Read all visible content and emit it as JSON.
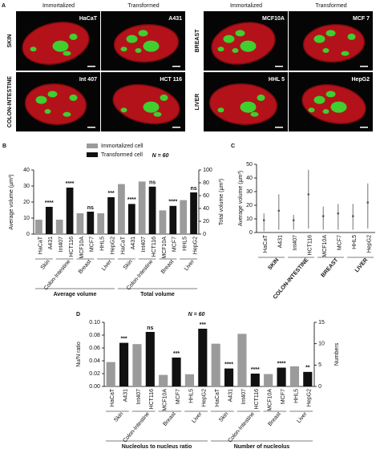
{
  "panel_a": {
    "label": "A",
    "grids": [
      {
        "headers": [
          "Immortalized",
          "Transformed"
        ],
        "rows": [
          {
            "tissue": "SKIN",
            "cells": [
              "HaCaT",
              "A431"
            ]
          },
          {
            "tissue": "COLON-INTESTINE",
            "cells": [
              "Int 407",
              "HCT 116"
            ]
          }
        ]
      },
      {
        "headers": [
          "Immortalized",
          "Transformed"
        ],
        "rows": [
          {
            "tissue": "BREAST",
            "cells": [
              "MCF10A",
              "MCF 7"
            ]
          },
          {
            "tissue": "LIVER",
            "cells": [
              "HHL 5",
              "HepG2"
            ]
          }
        ]
      }
    ]
  },
  "chart_data": [
    {
      "type": "bar",
      "label": "B",
      "note": "N = 60",
      "ylabel": "Average volume (µm³)",
      "y2label": "Total volume (µm³)",
      "ylim": [
        0,
        40
      ],
      "yticks": [
        0,
        10,
        20,
        30,
        40
      ],
      "y2lim": [
        0,
        100
      ],
      "y2ticks": [
        0,
        20,
        40,
        60,
        80,
        100
      ],
      "series": [
        {
          "name": "Immortalized cell",
          "color": "#9b9b9b"
        },
        {
          "name": "Transformed cell",
          "color": "#111111"
        }
      ],
      "categories": [
        "HaCaT",
        "A431",
        "Int407",
        "HCT116",
        "MCF10A",
        "MCF7",
        "HHL5",
        "HepG2",
        "HaCaT",
        "A431",
        "Int407",
        "HCT116",
        "MCF10A",
        "MCF7",
        "HHL5",
        "HepG2"
      ],
      "values": [
        9,
        17,
        9,
        29,
        13,
        14,
        13,
        23,
        78,
        47,
        82,
        74,
        37,
        44,
        53,
        65
      ],
      "bar_series": [
        0,
        1,
        0,
        1,
        0,
        1,
        0,
        1,
        0,
        1,
        0,
        1,
        0,
        1,
        0,
        1
      ],
      "bar_axis": [
        "y",
        "y",
        "y",
        "y",
        "y",
        "y",
        "y",
        "y",
        "y2",
        "y2",
        "y2",
        "y2",
        "y2",
        "y2",
        "y2",
        "y2"
      ],
      "annotations": [
        null,
        "****",
        null,
        "****",
        null,
        "ns",
        null,
        "***",
        null,
        "****",
        null,
        "ns",
        null,
        "****",
        null,
        "ns"
      ],
      "groups": [
        "Skin",
        "Colon-Intestine",
        "Breast",
        "Liver",
        "Skin",
        "Colon-Intestine",
        "Breast",
        "Liver"
      ],
      "sections": [
        "Average volume",
        "Total volume"
      ]
    },
    {
      "type": "range",
      "label": "C",
      "ylabel": "Average volume (µm³)",
      "ylim": [
        0,
        50
      ],
      "yticks": [
        0,
        10,
        20,
        30,
        40,
        50
      ],
      "color": "#8a8a8a",
      "categories": [
        "HaCaT",
        "A431",
        "Int407",
        "HCT116",
        "MCF10A",
        "MCF7",
        "HHL5",
        "HepG2"
      ],
      "low": [
        1,
        2,
        2,
        3,
        2,
        2,
        2,
        3
      ],
      "mean": [
        9,
        16,
        9,
        28,
        12,
        14,
        12,
        22
      ],
      "high": [
        14,
        28,
        13,
        46,
        19,
        21,
        21,
        36
      ],
      "groups": [
        "SKIN",
        "COLON-INTESTINE",
        "BREAST",
        "LIVER"
      ]
    },
    {
      "type": "bar",
      "label": "D",
      "note": "N = 60",
      "ylabel": "Nu/N ratio",
      "y2label": "Numbers",
      "ylim": [
        0,
        0.1
      ],
      "yticks": [
        {
          "value": 0,
          "label": "0.00"
        },
        {
          "value": 0.02,
          "label": "0.02"
        },
        {
          "value": 0.04,
          "label": "0.04"
        },
        {
          "value": 0.06,
          "label": "0.06"
        },
        {
          "value": 0.08,
          "label": "0.08"
        },
        {
          "value": 0.1,
          "label": "0.10"
        }
      ],
      "y2lim": [
        0,
        15
      ],
      "y2ticks": [
        0,
        5,
        10,
        15
      ],
      "series": [
        {
          "color": "#9b9b9b"
        },
        {
          "color": "#111111"
        }
      ],
      "categories": [
        "HaCaT",
        "A431",
        "Int407",
        "HCT116",
        "MCF10A",
        "MCF7",
        "HHL5",
        "HepG2",
        "HaCaT",
        "A431",
        "Int407",
        "HCT116",
        "MCF10A",
        "MCF7",
        "HHL5",
        "HepG2"
      ],
      "values": [
        0.038,
        0.068,
        0.066,
        0.085,
        0.018,
        0.045,
        0.019,
        0.09,
        10,
        4.2,
        12.3,
        3,
        2.9,
        4.4,
        4.7,
        3.4
      ],
      "bar_series": [
        0,
        1,
        0,
        1,
        0,
        1,
        0,
        1,
        0,
        1,
        0,
        1,
        0,
        1,
        0,
        1
      ],
      "bar_axis": [
        "y",
        "y",
        "y",
        "y",
        "y",
        "y",
        "y",
        "y",
        "y2",
        "y2",
        "y2",
        "y2",
        "y2",
        "y2",
        "y2",
        "y2"
      ],
      "annotations": [
        null,
        "***",
        null,
        "ns",
        null,
        "***",
        null,
        "***",
        null,
        "****",
        null,
        "****",
        null,
        "****",
        null,
        "**"
      ],
      "groups": [
        "Skin",
        "Colon-Intestine",
        "Breast",
        "Liver",
        "Skin",
        "Colon-Intestine",
        "Breast",
        "Liver"
      ],
      "sections": [
        "Nucleolus to nucleus ratio",
        "Number of nucleolus"
      ]
    }
  ]
}
